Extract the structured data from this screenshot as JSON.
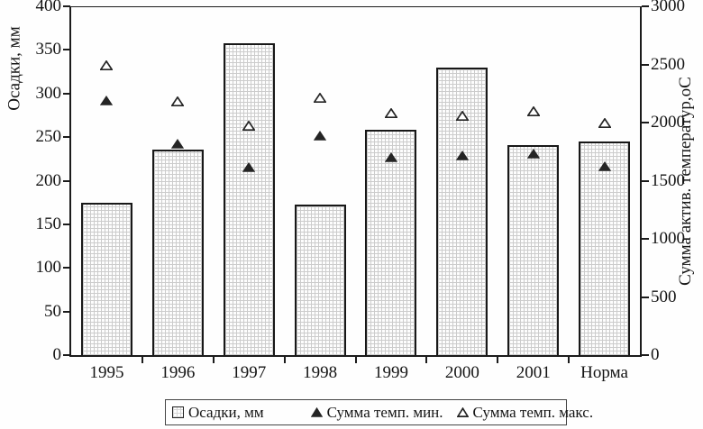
{
  "chart_data": {
    "type": "bar",
    "subtype": "bar-with-scatter-overlay",
    "title": "",
    "categories": [
      "1995",
      "1996",
      "1997",
      "1998",
      "1999",
      "2000",
      "2001",
      "Норма"
    ],
    "series": [
      {
        "name": "Осадки, мм",
        "type": "bar",
        "axis": "left",
        "marker": "square-swatch",
        "fill": "light-grid-pattern",
        "values": [
          175,
          236,
          358,
          173,
          258,
          330,
          241,
          245
        ]
      },
      {
        "name": "Сумма темп. мин.",
        "type": "scatter",
        "axis": "right",
        "marker": "filled-triangle",
        "color": "#242424",
        "values": [
          2190,
          1820,
          1615,
          1890,
          1700,
          1720,
          1730,
          1625
        ]
      },
      {
        "name": "Сумма темп. макс.",
        "type": "scatter",
        "axis": "right",
        "marker": "open-triangle",
        "color": "#242424",
        "values": [
          2490,
          2180,
          1970,
          2210,
          2080,
          2055,
          2100,
          1995
        ]
      }
    ],
    "left_axis": {
      "title": "Осадки, мм",
      "min": 0,
      "max": 400,
      "step": 50,
      "ticks": [
        "0",
        "50",
        "100",
        "150",
        "200",
        "250",
        "300",
        "350",
        "400"
      ]
    },
    "right_axis": {
      "title": "Сумма актив. температур,оС",
      "min": 0,
      "max": 3000,
      "step": 500,
      "ticks": [
        "0",
        "500",
        "1000",
        "1500",
        "2000",
        "2500",
        "3000"
      ]
    },
    "grid": "off",
    "legend_position": "bottom",
    "colors": {
      "line": "#1b1b1b",
      "text": "#141414",
      "bar_border": "#181818",
      "bar_pattern": "#cccccc",
      "background": "#fefefe"
    }
  }
}
